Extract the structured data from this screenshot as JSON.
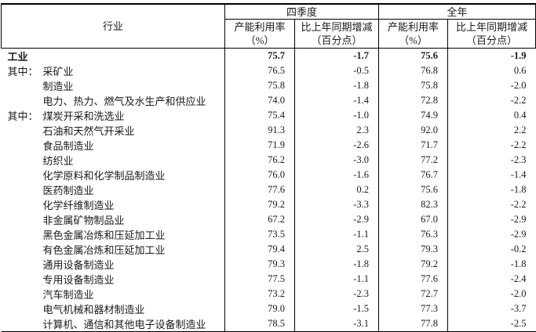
{
  "table": {
    "industry_header": "行业",
    "groups": [
      {
        "label": "四季度"
      },
      {
        "label": "全年"
      }
    ],
    "subheaders": {
      "rate_line1": "产能利用率",
      "rate_line2": "（%）",
      "change_line1": "比上年同期增减",
      "change_line2": "（百分点）"
    },
    "rows": [
      {
        "prefix": "",
        "label": "工业",
        "bold": true,
        "q4_rate": "75.7",
        "q4_change": "-1.7",
        "year_rate": "75.6",
        "year_change": "-1.9"
      },
      {
        "prefix": "其中：",
        "label": "采矿业",
        "bold": false,
        "q4_rate": "76.5",
        "q4_change": "-0.5",
        "year_rate": "76.8",
        "year_change": "0.6"
      },
      {
        "prefix": "",
        "label": "制造业",
        "bold": false,
        "q4_rate": "75.8",
        "q4_change": "-1.8",
        "year_rate": "75.8",
        "year_change": "-2.0"
      },
      {
        "prefix": "",
        "label": "电力、热力、燃气及水生产和供应业",
        "bold": false,
        "q4_rate": "74.0",
        "q4_change": "-1.4",
        "year_rate": "72.8",
        "year_change": "-2.2"
      },
      {
        "prefix": "其中：",
        "label": "煤炭开采和洗选业",
        "bold": false,
        "q4_rate": "75.4",
        "q4_change": "-1.0",
        "year_rate": "74.9",
        "year_change": "0.4"
      },
      {
        "prefix": "",
        "label": "石油和天然气开采业",
        "bold": false,
        "q4_rate": "91.3",
        "q4_change": "2.3",
        "year_rate": "92.0",
        "year_change": "2.2"
      },
      {
        "prefix": "",
        "label": "食品制造业",
        "bold": false,
        "q4_rate": "71.9",
        "q4_change": "-2.6",
        "year_rate": "71.7",
        "year_change": "-2.2"
      },
      {
        "prefix": "",
        "label": "纺织业",
        "bold": false,
        "q4_rate": "76.2",
        "q4_change": "-3.0",
        "year_rate": "77.2",
        "year_change": "-2.3"
      },
      {
        "prefix": "",
        "label": "化学原料和化学制品制造业",
        "bold": false,
        "q4_rate": "76.0",
        "q4_change": "-1.6",
        "year_rate": "76.7",
        "year_change": "-1.4"
      },
      {
        "prefix": "",
        "label": "医药制造业",
        "bold": false,
        "q4_rate": "77.6",
        "q4_change": "0.2",
        "year_rate": "75.6",
        "year_change": "-1.8"
      },
      {
        "prefix": "",
        "label": "化学纤维制造业",
        "bold": false,
        "q4_rate": "79.2",
        "q4_change": "-3.3",
        "year_rate": "82.3",
        "year_change": "-2.2"
      },
      {
        "prefix": "",
        "label": "非金属矿物制品业",
        "bold": false,
        "q4_rate": "67.2",
        "q4_change": "-2.9",
        "year_rate": "67.0",
        "year_change": "-2.9"
      },
      {
        "prefix": "",
        "label": "黑色金属冶炼和压延加工业",
        "bold": false,
        "q4_rate": "73.5",
        "q4_change": "-1.1",
        "year_rate": "76.3",
        "year_change": "-2.9"
      },
      {
        "prefix": "",
        "label": "有色金属冶炼和压延加工业",
        "bold": false,
        "q4_rate": "79.4",
        "q4_change": "2.5",
        "year_rate": "79.3",
        "year_change": "-0.2"
      },
      {
        "prefix": "",
        "label": "通用设备制造业",
        "bold": false,
        "q4_rate": "79.3",
        "q4_change": "-1.8",
        "year_rate": "79.2",
        "year_change": "-1.8"
      },
      {
        "prefix": "",
        "label": "专用设备制造业",
        "bold": false,
        "q4_rate": "77.5",
        "q4_change": "-1.1",
        "year_rate": "77.6",
        "year_change": "-2.4"
      },
      {
        "prefix": "",
        "label": "汽车制造业",
        "bold": false,
        "q4_rate": "73.2",
        "q4_change": "-2.3",
        "year_rate": "72.7",
        "year_change": "-2.0"
      },
      {
        "prefix": "",
        "label": "电气机械和器材制造业",
        "bold": false,
        "q4_rate": "79.0",
        "q4_change": "-1.5",
        "year_rate": "77.3",
        "year_change": "-3.7"
      },
      {
        "prefix": "",
        "label": "计算机、通信和其他电子设备制造业",
        "bold": false,
        "q4_rate": "78.5",
        "q4_change": "-3.1",
        "year_rate": "77.8",
        "year_change": "-2.5"
      }
    ]
  },
  "colors": {
    "border": "#000000",
    "text": "#1a1a1a"
  },
  "chart_data": {
    "type": "table",
    "columns": [
      "行业",
      "四季度 产能利用率（%）",
      "四季度 比上年同期增减（百分点）",
      "全年 产能利用率（%）",
      "全年 比上年同期增减（百分点）"
    ],
    "rows": [
      [
        "工业",
        75.7,
        -1.7,
        75.6,
        -1.9
      ],
      [
        "采矿业",
        76.5,
        -0.5,
        76.8,
        0.6
      ],
      [
        "制造业",
        75.8,
        -1.8,
        75.8,
        -2.0
      ],
      [
        "电力、热力、燃气及水生产和供应业",
        74.0,
        -1.4,
        72.8,
        -2.2
      ],
      [
        "煤炭开采和洗选业",
        75.4,
        -1.0,
        74.9,
        0.4
      ],
      [
        "石油和天然气开采业",
        91.3,
        2.3,
        92.0,
        2.2
      ],
      [
        "食品制造业",
        71.9,
        -2.6,
        71.7,
        -2.2
      ],
      [
        "纺织业",
        76.2,
        -3.0,
        77.2,
        -2.3
      ],
      [
        "化学原料和化学制品制造业",
        76.0,
        -1.6,
        76.7,
        -1.4
      ],
      [
        "医药制造业",
        77.6,
        0.2,
        75.6,
        -1.8
      ],
      [
        "化学纤维制造业",
        79.2,
        -3.3,
        82.3,
        -2.2
      ],
      [
        "非金属矿物制品业",
        67.2,
        -2.9,
        67.0,
        -2.9
      ],
      [
        "黑色金属冶炼和压延加工业",
        73.5,
        -1.1,
        76.3,
        -2.9
      ],
      [
        "有色金属冶炼和压延加工业",
        79.4,
        2.5,
        79.3,
        -0.2
      ],
      [
        "通用设备制造业",
        79.3,
        -1.8,
        79.2,
        -1.8
      ],
      [
        "专用设备制造业",
        77.5,
        -1.1,
        77.6,
        -2.4
      ],
      [
        "汽车制造业",
        73.2,
        -2.3,
        72.7,
        -2.0
      ],
      [
        "电气机械和器材制造业",
        79.0,
        -1.5,
        77.3,
        -3.7
      ],
      [
        "计算机、通信和其他电子设备制造业",
        78.5,
        -3.1,
        77.8,
        -2.5
      ]
    ]
  }
}
